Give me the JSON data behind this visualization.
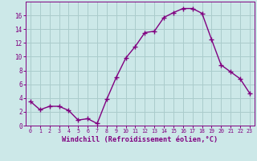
{
  "hours": [
    0,
    1,
    2,
    3,
    4,
    5,
    6,
    7,
    8,
    9,
    10,
    11,
    12,
    13,
    14,
    15,
    16,
    17,
    18,
    19,
    20,
    21,
    22,
    23
  ],
  "values": [
    3.5,
    2.3,
    2.8,
    2.8,
    2.2,
    0.8,
    1.0,
    0.3,
    3.8,
    7.0,
    9.8,
    11.5,
    13.5,
    13.7,
    15.7,
    16.4,
    17.0,
    17.0,
    16.3,
    12.5,
    8.8,
    7.8,
    6.8,
    4.7
  ],
  "line_color": "#800080",
  "marker": "+",
  "bg_color": "#cce8e8",
  "grid_color": "#aacccc",
  "xlabel": "Windchill (Refroidissement éolien,°C)",
  "xlabel_color": "#800080",
  "tick_color": "#800080",
  "ylim": [
    0,
    18
  ],
  "xlim_min": -0.5,
  "xlim_max": 23.5,
  "yticks": [
    0,
    2,
    4,
    6,
    8,
    10,
    12,
    14,
    16
  ],
  "xticks": [
    0,
    1,
    2,
    3,
    4,
    5,
    6,
    7,
    8,
    9,
    10,
    11,
    12,
    13,
    14,
    15,
    16,
    17,
    18,
    19,
    20,
    21,
    22,
    23
  ],
  "xtick_fontsize": 4.8,
  "ytick_fontsize": 5.5,
  "xlabel_fontsize": 6.2,
  "linewidth": 1.0,
  "markersize": 4,
  "markeredgewidth": 1.0
}
